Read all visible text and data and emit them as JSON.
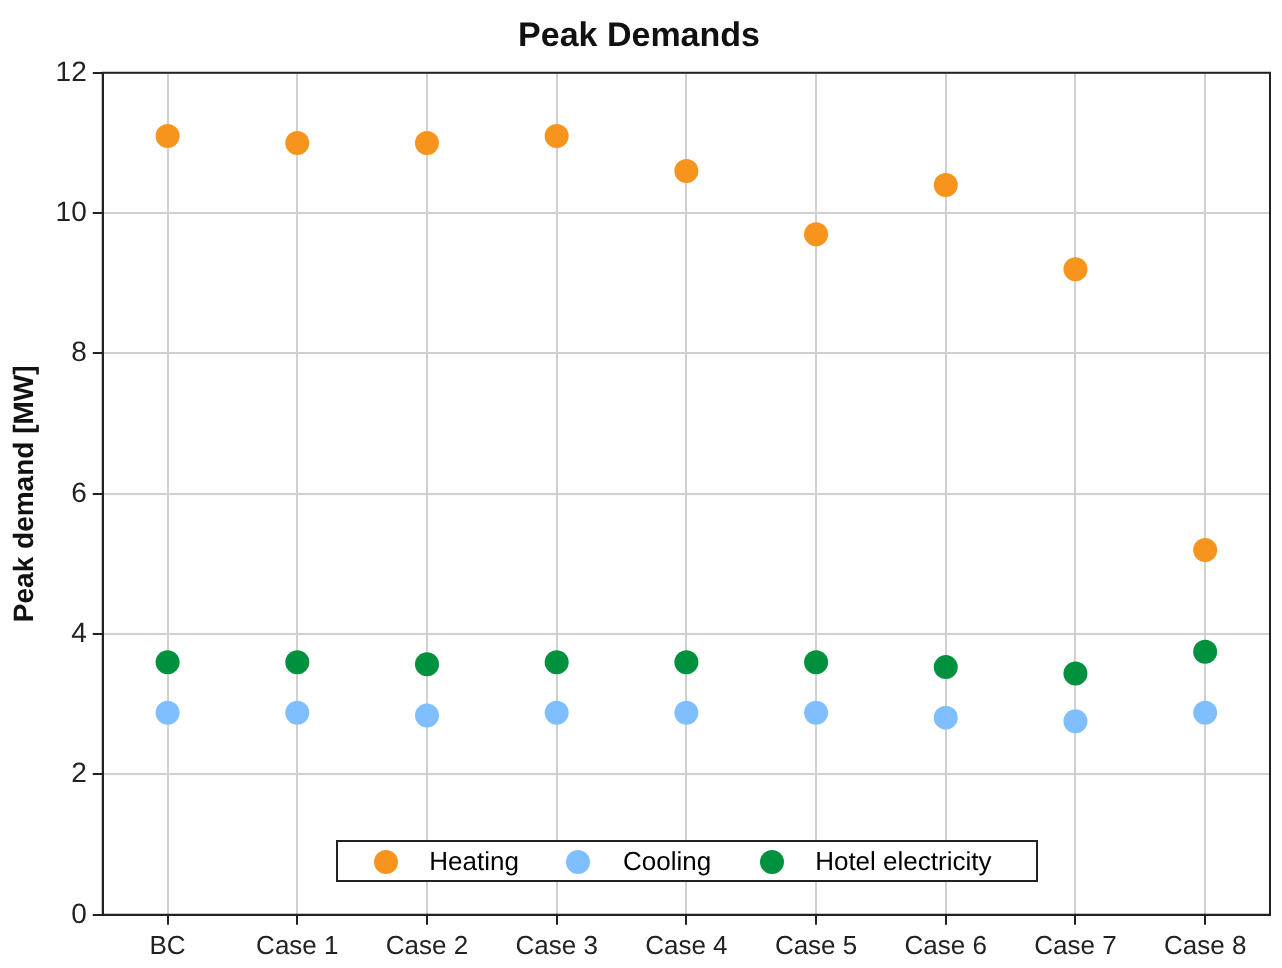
{
  "chart_data": {
    "type": "scatter",
    "title": "Peak Demands",
    "ylabel": "Peak demand [MW]",
    "categories": [
      "BC",
      "Case 1",
      "Case 2",
      "Case 3",
      "Case 4",
      "Case 5",
      "Case 6",
      "Case 7",
      "Case 8"
    ],
    "series": [
      {
        "name": "Heating",
        "color": "#f7941d",
        "values": [
          11.1,
          11.0,
          11.0,
          11.1,
          10.6,
          9.7,
          10.4,
          9.2,
          5.2
        ]
      },
      {
        "name": "Cooling",
        "color": "#80bfff",
        "values": [
          2.88,
          2.88,
          2.84,
          2.88,
          2.88,
          2.88,
          2.81,
          2.76,
          2.88
        ]
      },
      {
        "name": "Hotel electricity",
        "color": "#00913f",
        "values": [
          3.6,
          3.6,
          3.57,
          3.6,
          3.6,
          3.6,
          3.53,
          3.44,
          3.75
        ]
      }
    ],
    "ylim": [
      0,
      12
    ],
    "yticks": [
      0,
      2,
      4,
      6,
      8,
      10,
      12
    ],
    "grid": true,
    "legend": "bottom",
    "marker": "circle"
  }
}
